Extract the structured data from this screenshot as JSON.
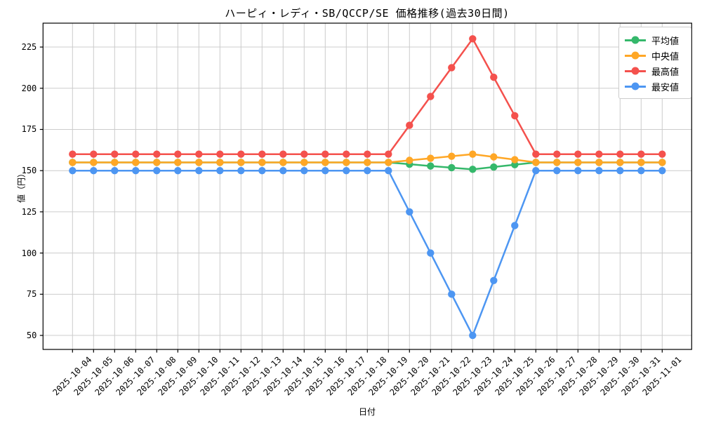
{
  "chart_data": {
    "type": "line",
    "title": "ハーピィ・レディ・SB/QCCP/SE 価格推移(過去30日間)",
    "xlabel": "日付",
    "ylabel": "値（円）",
    "grid": true,
    "legend_position": "upper right",
    "ylim": [
      41.5,
      239.5
    ],
    "yticks": [
      50,
      75,
      100,
      125,
      150,
      175,
      200,
      225
    ],
    "x": [
      "2025-10-04",
      "2025-10-05",
      "2025-10-06",
      "2025-10-07",
      "2025-10-08",
      "2025-10-09",
      "2025-10-10",
      "2025-10-11",
      "2025-10-12",
      "2025-10-13",
      "2025-10-14",
      "2025-10-15",
      "2025-10-16",
      "2025-10-17",
      "2025-10-18",
      "2025-10-19",
      "2025-10-20",
      "2025-10-21",
      "2025-10-22",
      "2025-10-23",
      "2025-10-24",
      "2025-10-25",
      "2025-10-26",
      "2025-10-27",
      "2025-10-28",
      "2025-10-29",
      "2025-10-30",
      "2025-10-31",
      "2025-11-01"
    ],
    "series": [
      {
        "key": "mean",
        "name": "平均値",
        "color": "#35b86b",
        "values": [
          155,
          155,
          155,
          155,
          155,
          155,
          155,
          155,
          155,
          155,
          155,
          155,
          155,
          155,
          155,
          155,
          153.9,
          152.8,
          151.8,
          150.8,
          152.2,
          153.6,
          155,
          155,
          155,
          155,
          155,
          155,
          155
        ]
      },
      {
        "key": "median",
        "name": "中央値",
        "color": "#ffa726",
        "values": [
          155,
          155,
          155,
          155,
          155,
          155,
          155,
          155,
          155,
          155,
          155,
          155,
          155,
          155,
          155,
          155,
          156.25,
          157.5,
          158.75,
          160,
          158.33,
          156.67,
          155,
          155,
          155,
          155,
          155,
          155,
          155
        ]
      },
      {
        "key": "max",
        "name": "最高値",
        "color": "#f4514d",
        "values": [
          160,
          160,
          160,
          160,
          160,
          160,
          160,
          160,
          160,
          160,
          160,
          160,
          160,
          160,
          160,
          160,
          177.5,
          195,
          212.5,
          230,
          206.67,
          183.33,
          160,
          160,
          160,
          160,
          160,
          160,
          160
        ]
      },
      {
        "key": "min",
        "name": "最安値",
        "color": "#4d96f2",
        "values": [
          150,
          150,
          150,
          150,
          150,
          150,
          150,
          150,
          150,
          150,
          150,
          150,
          150,
          150,
          150,
          150,
          125,
          100,
          75,
          50,
          83.33,
          116.67,
          150,
          150,
          150,
          150,
          150,
          150,
          150
        ]
      }
    ]
  },
  "style": {
    "grid_color": "#cccccc",
    "spine_color": "#000000",
    "background": "#ffffff"
  }
}
